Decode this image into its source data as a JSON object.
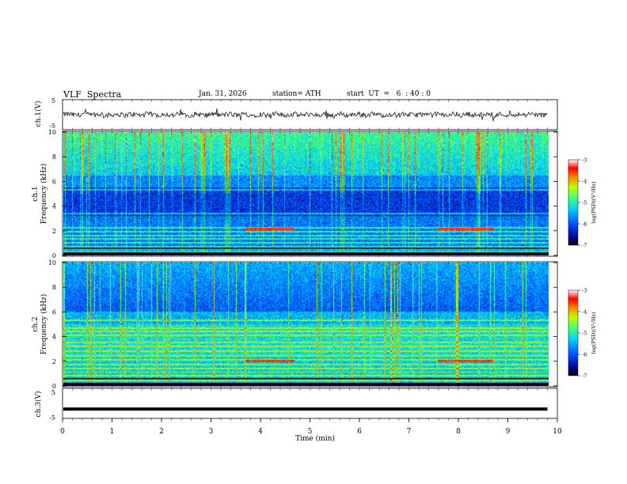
{
  "header": {
    "title": "VLF  Spectra",
    "date": "Jan. 31, 2026",
    "station": "station= ATH",
    "start": "start  UT  =   6  : 40 : 0"
  },
  "chart_data": [
    {
      "type": "line",
      "panel": "ch1-waveform",
      "ylabel": "ch.1(V)",
      "ylim": [
        -5,
        5
      ],
      "yticks": [
        "5",
        "-5"
      ],
      "xlim": [
        0,
        10
      ],
      "data_extent_min": [
        0,
        9.8
      ],
      "series": [
        {
          "values_note": "noise around 0 V, amplitude ~1 V with occasional spikes to about -2 V and +2 V"
        }
      ]
    },
    {
      "type": "heatmap",
      "panel": "ch1-spectrogram",
      "ylabel": "ch.1",
      "ylabel2": "Frequency  (kHz)",
      "ylim": [
        0,
        10
      ],
      "yticks": [
        "0",
        "2",
        "4",
        "6",
        "8",
        "10"
      ],
      "xlim": [
        0,
        10
      ],
      "colorbar": {
        "label": "log(PSD)(V²/Hz)",
        "range": [
          -7,
          -3
        ],
        "ticks": [
          "-3",
          "-4",
          "-5",
          "-6",
          "-7"
        ]
      },
      "bands_khz": [
        0.3,
        0.45,
        0.7,
        1.0,
        1.3,
        1.6,
        1.9,
        2.2,
        3.1,
        3.4,
        5.3
      ],
      "strong_band_segments": [
        {
          "khz": 2.1,
          "start_min": 3.75,
          "end_min": 4.75
        },
        {
          "khz": 2.1,
          "start_min": 7.7,
          "end_min": 8.85
        }
      ]
    },
    {
      "type": "heatmap",
      "panel": "ch2-spectrogram",
      "ylabel": "ch.2",
      "ylabel2": "Frequency  (kHz)",
      "ylim": [
        0,
        10
      ],
      "yticks": [
        "0",
        "2",
        "4",
        "6",
        "8",
        "10"
      ],
      "xlim": [
        0,
        10
      ],
      "colorbar": {
        "label": "log(PSD)(V²/Hz)",
        "range": [
          -7,
          -3
        ],
        "ticks": [
          "-3",
          "-4",
          "-5",
          "-6",
          "-7"
        ]
      },
      "bands_khz": [
        0.4,
        0.8,
        1.1,
        1.4,
        1.7,
        2.1,
        2.4,
        2.8,
        3.2,
        3.5,
        4.1,
        4.4,
        4.7,
        5.3
      ],
      "strong_band_segments": [
        {
          "khz": 2.0,
          "start_min": 3.75,
          "end_min": 4.75
        },
        {
          "khz": 2.0,
          "start_min": 7.7,
          "end_min": 8.85
        }
      ]
    },
    {
      "type": "line",
      "panel": "ch3-waveform",
      "ylabel": "ch.3(V)",
      "ylim": [
        -5,
        5
      ],
      "yticks": [
        "5",
        "-5"
      ],
      "xlim": [
        0,
        10
      ],
      "series": [
        {
          "values_note": "flat line near -2 V",
          "level": -2.0
        }
      ]
    }
  ],
  "xaxis": {
    "label": "Time  (min)",
    "ticks": [
      "0",
      "1",
      "2",
      "3",
      "4",
      "5",
      "6",
      "7",
      "8",
      "9",
      "10"
    ]
  }
}
